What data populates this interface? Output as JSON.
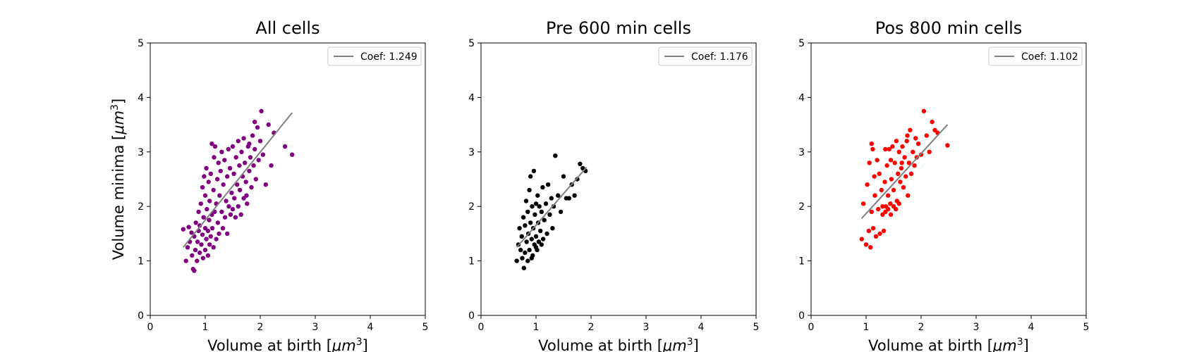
{
  "chart_data": [
    {
      "type": "scatter",
      "title": "All cells",
      "xlabel": "Volume at birth [",
      "ylabel": "Volume minima [",
      "label_unit": "μm",
      "label_exp": "3",
      "label_close": "]",
      "xlim": [
        0,
        5
      ],
      "ylim": [
        0,
        5
      ],
      "xticks": [
        "0",
        "1",
        "2",
        "3",
        "4",
        "5"
      ],
      "yticks": [
        "0",
        "1",
        "2",
        "3",
        "4",
        "5"
      ],
      "legend": "Coef: 1.249",
      "legend_position": "upper-right",
      "point_color": "#800080",
      "line_color": "#808080",
      "fit_line": {
        "x": [
          0.6,
          2.58
        ],
        "y": [
          1.25,
          3.72
        ]
      },
      "points": [
        [
          0.6,
          1.58
        ],
        [
          0.65,
          1.0
        ],
        [
          0.68,
          1.25
        ],
        [
          0.7,
          1.62
        ],
        [
          0.72,
          1.35
        ],
        [
          0.75,
          1.52
        ],
        [
          0.76,
          1.1
        ],
        [
          0.78,
          0.85
        ],
        [
          0.8,
          0.82
        ],
        [
          0.8,
          1.45
        ],
        [
          0.82,
          1.2
        ],
        [
          0.83,
          1.7
        ],
        [
          0.85,
          1.0
        ],
        [
          0.86,
          1.35
        ],
        [
          0.88,
          1.55
        ],
        [
          0.88,
          1.9
        ],
        [
          0.9,
          1.15
        ],
        [
          0.9,
          1.65
        ],
        [
          0.92,
          2.05
        ],
        [
          0.93,
          1.3
        ],
        [
          0.95,
          1.48
        ],
        [
          0.95,
          2.35
        ],
        [
          0.96,
          1.05
        ],
        [
          0.97,
          1.8
        ],
        [
          0.98,
          2.55
        ],
        [
          1.0,
          1.2
        ],
        [
          1.0,
          1.6
        ],
        [
          1.0,
          2.2
        ],
        [
          1.02,
          1.4
        ],
        [
          1.02,
          2.7
        ],
        [
          1.03,
          1.95
        ],
        [
          1.05,
          1.1
        ],
        [
          1.05,
          1.55
        ],
        [
          1.06,
          2.45
        ],
        [
          1.07,
          1.75
        ],
        [
          1.08,
          1.3
        ],
        [
          1.08,
          2.1
        ],
        [
          1.1,
          2.6
        ],
        [
          1.1,
          1.45
        ],
        [
          1.12,
          3.15
        ],
        [
          1.12,
          1.85
        ],
        [
          1.13,
          1.6
        ],
        [
          1.15,
          2.3
        ],
        [
          1.15,
          1.25
        ],
        [
          1.16,
          2.9
        ],
        [
          1.17,
          1.9
        ],
        [
          1.18,
          3.1
        ],
        [
          1.2,
          2.05
        ],
        [
          1.2,
          1.4
        ],
        [
          1.22,
          2.5
        ],
        [
          1.23,
          1.7
        ],
        [
          1.24,
          2.8
        ],
        [
          1.25,
          1.5
        ],
        [
          1.26,
          2.2
        ],
        [
          1.28,
          2.65
        ],
        [
          1.3,
          1.9
        ],
        [
          1.3,
          3.0
        ],
        [
          1.32,
          1.6
        ],
        [
          1.33,
          2.4
        ],
        [
          1.35,
          2.85
        ],
        [
          1.36,
          1.8
        ],
        [
          1.38,
          2.1
        ],
        [
          1.4,
          2.55
        ],
        [
          1.4,
          1.5
        ],
        [
          1.42,
          3.05
        ],
        [
          1.43,
          2.0
        ],
        [
          1.45,
          2.7
        ],
        [
          1.46,
          1.85
        ],
        [
          1.48,
          2.25
        ],
        [
          1.5,
          3.1
        ],
        [
          1.5,
          1.95
        ],
        [
          1.52,
          2.6
        ],
        [
          1.53,
          2.15
        ],
        [
          1.55,
          1.8
        ],
        [
          1.56,
          2.9
        ],
        [
          1.58,
          2.4
        ],
        [
          1.6,
          3.2
        ],
        [
          1.6,
          2.0
        ],
        [
          1.62,
          2.75
        ],
        [
          1.63,
          2.3
        ],
        [
          1.65,
          1.85
        ],
        [
          1.66,
          3.0
        ],
        [
          1.68,
          2.55
        ],
        [
          1.7,
          2.15
        ],
        [
          1.7,
          3.25
        ],
        [
          1.72,
          2.8
        ],
        [
          1.74,
          2.45
        ],
        [
          1.76,
          2.05
        ],
        [
          1.78,
          3.1
        ],
        [
          1.8,
          2.65
        ],
        [
          1.82,
          2.9
        ],
        [
          1.84,
          2.35
        ],
        [
          1.86,
          3.3
        ],
        [
          1.88,
          2.75
        ],
        [
          1.9,
          3.05
        ],
        [
          1.92,
          2.5
        ],
        [
          1.95,
          3.45
        ],
        [
          1.97,
          2.85
        ],
        [
          2.0,
          3.2
        ],
        [
          2.02,
          3.75
        ],
        [
          2.05,
          2.95
        ],
        [
          2.1,
          2.4
        ],
        [
          2.15,
          3.5
        ],
        [
          2.2,
          2.75
        ],
        [
          2.25,
          3.35
        ],
        [
          2.45,
          3.1
        ],
        [
          2.58,
          2.95
        ],
        [
          1.9,
          3.55
        ],
        [
          1.8,
          3.15
        ],
        [
          1.75,
          2.2
        ]
      ]
    },
    {
      "type": "scatter",
      "title": "Pre 600 min cells",
      "xlabel": "Volume at birth [",
      "ylabel": "",
      "label_unit": "μm",
      "label_exp": "3",
      "label_close": "]",
      "xlim": [
        0,
        5
      ],
      "ylim": [
        0,
        5
      ],
      "xticks": [
        "0",
        "1",
        "2",
        "3",
        "4",
        "5"
      ],
      "yticks": [
        "0",
        "1",
        "2",
        "3",
        "4",
        "5"
      ],
      "legend": "Coef: 1.176",
      "legend_position": "upper-right",
      "point_color": "#000000",
      "line_color": "#808080",
      "fit_line": {
        "x": [
          0.65,
          1.92
        ],
        "y": [
          1.25,
          2.72
        ]
      },
      "points": [
        [
          0.65,
          1.0
        ],
        [
          0.68,
          1.3
        ],
        [
          0.7,
          1.6
        ],
        [
          0.72,
          1.2
        ],
        [
          0.74,
          1.45
        ],
        [
          0.75,
          1.05
        ],
        [
          0.77,
          1.8
        ],
        [
          0.78,
          0.87
        ],
        [
          0.8,
          1.15
        ],
        [
          0.8,
          1.65
        ],
        [
          0.82,
          2.1
        ],
        [
          0.83,
          1.35
        ],
        [
          0.85,
          1.0
        ],
        [
          0.85,
          1.9
        ],
        [
          0.86,
          1.5
        ],
        [
          0.88,
          2.3
        ],
        [
          0.88,
          1.2
        ],
        [
          0.9,
          1.7
        ],
        [
          0.9,
          2.55
        ],
        [
          0.92,
          1.4
        ],
        [
          0.93,
          2.0
        ],
        [
          0.94,
          1.1
        ],
        [
          0.95,
          1.6
        ],
        [
          0.96,
          2.65
        ],
        [
          0.97,
          1.3
        ],
        [
          0.98,
          1.85
        ],
        [
          1.0,
          2.05
        ],
        [
          1.0,
          1.45
        ],
        [
          1.02,
          1.2
        ],
        [
          1.03,
          2.2
        ],
        [
          1.04,
          1.7
        ],
        [
          1.05,
          1.35
        ],
        [
          1.06,
          2.0
        ],
        [
          1.08,
          1.55
        ],
        [
          1.1,
          1.9
        ],
        [
          1.12,
          2.35
        ],
        [
          1.13,
          1.4
        ],
        [
          1.15,
          1.75
        ],
        [
          1.18,
          2.05
        ],
        [
          1.2,
          1.5
        ],
        [
          1.22,
          2.4
        ],
        [
          1.25,
          1.85
        ],
        [
          1.28,
          2.15
        ],
        [
          1.3,
          1.6
        ],
        [
          1.32,
          2.0
        ],
        [
          1.35,
          2.93
        ],
        [
          1.4,
          2.2
        ],
        [
          1.45,
          1.9
        ],
        [
          1.5,
          2.55
        ],
        [
          1.55,
          2.15
        ],
        [
          1.6,
          2.15
        ],
        [
          1.65,
          2.4
        ],
        [
          1.7,
          2.2
        ],
        [
          1.75,
          2.5
        ],
        [
          1.8,
          2.78
        ],
        [
          1.85,
          2.7
        ],
        [
          1.9,
          2.65
        ],
        [
          1.0,
          1.25
        ],
        [
          0.92,
          1.05
        ],
        [
          1.1,
          1.3
        ]
      ]
    },
    {
      "type": "scatter",
      "title": "Pos 800 min cells",
      "xlabel": "Volume at birth [",
      "ylabel": "",
      "label_unit": "μm",
      "label_exp": "3",
      "label_close": "]",
      "xlim": [
        0,
        5
      ],
      "ylim": [
        0,
        5
      ],
      "xticks": [
        "0",
        "1",
        "2",
        "3",
        "4",
        "5"
      ],
      "yticks": [
        "0",
        "1",
        "2",
        "3",
        "4",
        "5"
      ],
      "legend": "Coef: 1.102",
      "legend_position": "upper-right",
      "point_color": "#ff0000",
      "line_color": "#808080",
      "fit_line": {
        "x": [
          0.92,
          2.48
        ],
        "y": [
          1.78,
          3.5
        ]
      },
      "points": [
        [
          0.92,
          1.4
        ],
        [
          0.95,
          2.05
        ],
        [
          1.0,
          1.3
        ],
        [
          1.02,
          2.4
        ],
        [
          1.05,
          1.55
        ],
        [
          1.06,
          2.8
        ],
        [
          1.08,
          1.25
        ],
        [
          1.1,
          3.15
        ],
        [
          1.1,
          1.9
        ],
        [
          1.12,
          3.05
        ],
        [
          1.13,
          1.6
        ],
        [
          1.15,
          2.55
        ],
        [
          1.16,
          2.2
        ],
        [
          1.18,
          1.45
        ],
        [
          1.2,
          2.85
        ],
        [
          1.22,
          1.95
        ],
        [
          1.24,
          2.6
        ],
        [
          1.25,
          1.5
        ],
        [
          1.28,
          2.3
        ],
        [
          1.3,
          2.0
        ],
        [
          1.3,
          1.85
        ],
        [
          1.32,
          1.55
        ],
        [
          1.34,
          2.45
        ],
        [
          1.35,
          1.9
        ],
        [
          1.36,
          2.0
        ],
        [
          1.38,
          2.75
        ],
        [
          1.4,
          1.95
        ],
        [
          1.4,
          2.2
        ],
        [
          1.42,
          3.05
        ],
        [
          1.44,
          2.05
        ],
        [
          1.45,
          1.85
        ],
        [
          1.46,
          2.5
        ],
        [
          1.48,
          3.1
        ],
        [
          1.5,
          2.0
        ],
        [
          1.5,
          2.3
        ],
        [
          1.52,
          2.8
        ],
        [
          1.54,
          1.95
        ],
        [
          1.55,
          3.2
        ],
        [
          1.56,
          2.1
        ],
        [
          1.58,
          2.6
        ],
        [
          1.6,
          2.05
        ],
        [
          1.6,
          3.0
        ],
        [
          1.62,
          2.45
        ],
        [
          1.64,
          2.7
        ],
        [
          1.66,
          3.1
        ],
        [
          1.68,
          2.35
        ],
        [
          1.7,
          2.9
        ],
        [
          1.72,
          2.55
        ],
        [
          1.74,
          3.2
        ],
        [
          1.76,
          2.2
        ],
        [
          1.78,
          2.8
        ],
        [
          1.8,
          3.4
        ],
        [
          1.82,
          2.6
        ],
        [
          1.85,
          3.0
        ],
        [
          1.88,
          2.75
        ],
        [
          1.9,
          3.25
        ],
        [
          1.92,
          2.9
        ],
        [
          1.95,
          3.15
        ],
        [
          2.0,
          2.95
        ],
        [
          2.05,
          3.75
        ],
        [
          2.1,
          3.3
        ],
        [
          2.15,
          3.0
        ],
        [
          2.2,
          3.55
        ],
        [
          2.25,
          3.4
        ],
        [
          2.3,
          3.35
        ],
        [
          2.48,
          3.12
        ],
        [
          1.75,
          3.3
        ],
        [
          1.65,
          2.8
        ],
        [
          1.45,
          2.85
        ],
        [
          1.35,
          3.05
        ]
      ]
    }
  ]
}
